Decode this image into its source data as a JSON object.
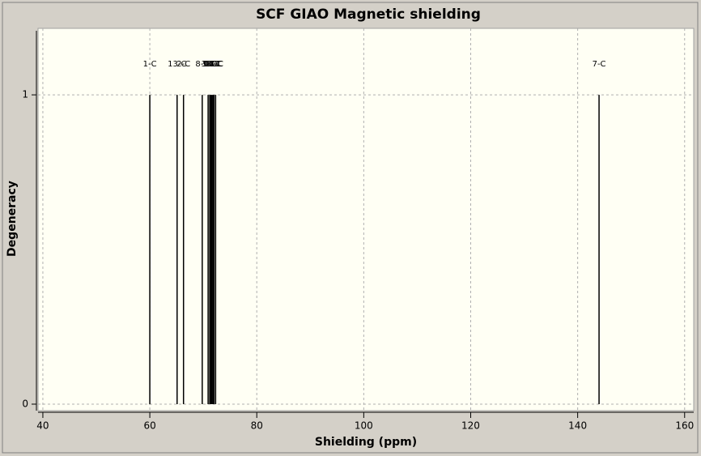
{
  "chart_data": {
    "type": "stick",
    "title": "SCF GIAO Magnetic shielding",
    "xlabel": "Shielding (ppm)",
    "ylabel": "Degeneracy",
    "x": [
      60.0,
      65.1,
      66.3,
      69.8,
      70.9,
      71.2,
      71.4,
      71.6,
      71.8,
      72.0,
      72.3,
      144.0
    ],
    "values": [
      1,
      1,
      1,
      1,
      1,
      1,
      1,
      1,
      1,
      1,
      1,
      1
    ],
    "labels": [
      "1-C",
      "13-C",
      "2-C",
      "8-C",
      "3-C",
      "9-C",
      "4-C",
      "10-C",
      "5-C",
      "11-C",
      "6-C",
      "7-C"
    ],
    "color": "#000000",
    "xlim": [
      39.1,
      161.7
    ],
    "ylim": [
      -0.021,
      1.215
    ],
    "xticks": [
      40,
      60,
      80,
      100,
      120,
      140,
      160
    ],
    "yticks": [
      0,
      1
    ],
    "grid": true
  }
}
